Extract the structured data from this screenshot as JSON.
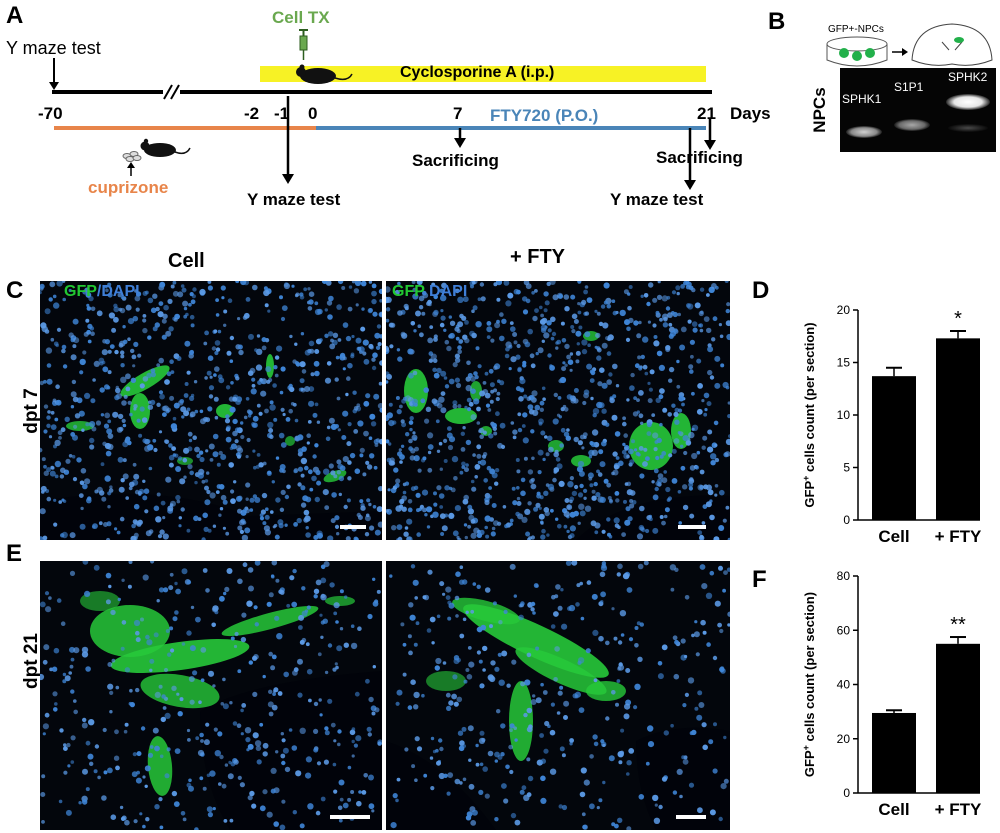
{
  "panels": {
    "A": "A",
    "B": "B",
    "C": "C",
    "D": "D",
    "E": "E",
    "F": "F"
  },
  "timeline": {
    "y_maze_top": "Y maze test",
    "cell_tx": "Cell TX",
    "cyclosporine": "Cyclosporine A (i.p.)",
    "ticks": [
      "-70",
      "-2",
      "-1",
      "0",
      "7",
      "21"
    ],
    "days": "Days",
    "fty720": "FTY720 (P.O.)",
    "cuprizone": "cuprizone",
    "sacrificing_7": "Sacrificing",
    "sacrificing_21": "Sacrificing",
    "y_maze_bottom_left": "Y maze test",
    "y_maze_bottom_right": "Y maze test",
    "colors": {
      "cyclosporine_bar": "#f7f225",
      "cuprizone_line": "#e8854a",
      "fty_line": "#4a85b8",
      "cell_tx_text": "#6aa84f"
    }
  },
  "gel": {
    "dish_label": "GFP+-NPCs",
    "side_label": "NPCs",
    "lanes": [
      "SPHK1",
      "S1P1",
      "SPHK2"
    ]
  },
  "micrographs": {
    "col_cell": "Cell",
    "col_fty": "+ FTY",
    "row_7": "dpt  7",
    "row_21": "dpt 21",
    "stain_gfp": "GFP",
    "stain_sep": "/",
    "stain_dapi": "DAPI",
    "stain_gfp_2": "GFP",
    "stain_dapi_2": " DAPI",
    "colors": {
      "gfp": "#22c832",
      "dapi": "#3f7fd8"
    }
  },
  "chart_data": [
    {
      "type": "bar",
      "panel": "D",
      "categories": [
        "Cell",
        "+ FTY"
      ],
      "values": [
        13.7,
        17.3
      ],
      "errors": [
        0.8,
        0.7
      ],
      "significance": [
        "",
        "*"
      ],
      "ylabel_main": "GFP",
      "ylabel_sup": "+",
      "ylabel_rest": " cells count  (per section)",
      "ylim": [
        0,
        20
      ],
      "yticks": [
        "0",
        "5",
        "10",
        "15",
        "20"
      ]
    },
    {
      "type": "bar",
      "panel": "F",
      "categories": [
        "Cell",
        "+ FTY"
      ],
      "values": [
        29.5,
        55
      ],
      "errors": [
        1.0,
        2.5
      ],
      "significance": [
        "",
        "**"
      ],
      "ylabel_main": "GFP",
      "ylabel_sup": "+",
      "ylabel_rest": " cells count  (per section)",
      "ylim": [
        0,
        80
      ],
      "yticks": [
        "0",
        "20",
        "40",
        "60",
        "80"
      ]
    }
  ]
}
